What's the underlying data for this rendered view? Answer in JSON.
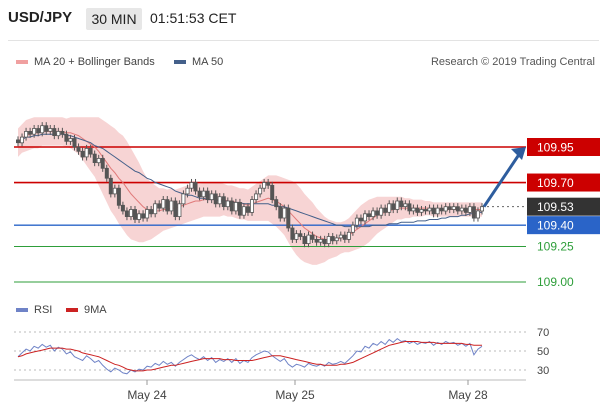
{
  "header": {
    "pair": "USD/JPY",
    "timeframe": "30 MIN",
    "time": "01:51:53 CET"
  },
  "legend": {
    "ma20_bb": "MA 20 + Bollinger Bands",
    "ma50": "MA 50",
    "rsi": "RSI",
    "nine_ma": "9MA"
  },
  "credit": "Research © 2019 Trading Central",
  "colors": {
    "resistance": "#cc0000",
    "support_blue": "#2a64c8",
    "support_green": "#2e9e3a",
    "candle": "#555555",
    "bb_fill": "#f4c6c6",
    "ma20": "#e07a7a",
    "ma50": "#44608a",
    "rsi": "#6f83c7",
    "nine_ma": "#cc2222",
    "arrow": "#2e5d9e",
    "price_tag": "#333333"
  },
  "chart_data": {
    "type": "candlestick",
    "price_ylim": [
      108.95,
      110.15
    ],
    "x_ticks": [
      "May 24",
      "May 25",
      "May 28"
    ],
    "levels": [
      {
        "value": 109.95,
        "label": "109.95",
        "kind": "resistance"
      },
      {
        "value": 109.7,
        "label": "109.70",
        "kind": "resistance"
      },
      {
        "value": 109.53,
        "label": "109.53",
        "kind": "current"
      },
      {
        "value": 109.4,
        "label": "109.40",
        "kind": "support_blue"
      },
      {
        "value": 109.25,
        "label": "109.25",
        "kind": "support_green"
      },
      {
        "value": 109.0,
        "label": "109.00",
        "kind": "support_green"
      }
    ],
    "close": [
      109.98,
      110.02,
      110.06,
      110.04,
      110.08,
      110.05,
      110.1,
      110.06,
      110.08,
      110.03,
      110.06,
      110.04,
      109.99,
      110.01,
      109.95,
      109.92,
      109.88,
      109.94,
      109.9,
      109.84,
      109.87,
      109.8,
      109.73,
      109.62,
      109.66,
      109.54,
      109.5,
      109.46,
      109.51,
      109.44,
      109.48,
      109.45,
      109.51,
      109.48,
      109.55,
      109.52,
      109.58,
      109.5,
      109.57,
      109.46,
      109.55,
      109.62,
      109.66,
      109.7,
      109.64,
      109.6,
      109.64,
      109.58,
      109.62,
      109.55,
      109.6,
      109.53,
      109.57,
      109.5,
      109.56,
      109.47,
      109.53,
      109.49,
      109.58,
      109.62,
      109.66,
      109.7,
      109.68,
      109.58,
      109.53,
      109.45,
      109.52,
      109.38,
      109.3,
      109.34,
      109.32,
      109.27,
      109.33,
      109.3,
      109.28,
      109.3,
      109.27,
      109.32,
      109.29,
      109.31,
      109.33,
      109.3,
      109.35,
      109.4,
      109.45,
      109.43,
      109.48,
      109.46,
      109.5,
      109.47,
      109.52,
      109.49,
      109.55,
      109.51,
      109.57,
      109.53,
      109.55,
      109.5,
      109.52,
      109.49,
      109.51,
      109.5,
      109.52,
      109.48,
      109.52,
      109.5,
      109.53,
      109.51,
      109.53,
      109.5,
      109.52,
      109.49,
      109.53,
      109.45,
      109.5,
      109.53
    ],
    "ma50": [
      109.98,
      110.0,
      110.02,
      110.02,
      110.03,
      110.03,
      110.04,
      110.04,
      110.04,
      110.04,
      110.04,
      110.04,
      110.03,
      110.03,
      110.02,
      110.01,
      110.0,
      109.99,
      109.98,
      109.96,
      109.95,
      109.94,
      109.92,
      109.9,
      109.88,
      109.86,
      109.84,
      109.82,
      109.8,
      109.78,
      109.77,
      109.75,
      109.73,
      109.72,
      109.7,
      109.69,
      109.68,
      109.67,
      109.66,
      109.64,
      109.63,
      109.62,
      109.61,
      109.61,
      109.6,
      109.59,
      109.59,
      109.58,
      109.58,
      109.58,
      109.57,
      109.57,
      109.57,
      109.56,
      109.56,
      109.56,
      109.55,
      109.55,
      109.55,
      109.55,
      109.55,
      109.55,
      109.55,
      109.54,
      109.54,
      109.53,
      109.53,
      109.52,
      109.51,
      109.5,
      109.49,
      109.48,
      109.47,
      109.46,
      109.45,
      109.44,
      109.43,
      109.42,
      109.41,
      109.4,
      109.4,
      109.39,
      109.39,
      109.39,
      109.39,
      109.39,
      109.39,
      109.39,
      109.4,
      109.4,
      109.4,
      109.4,
      109.41,
      109.41,
      109.41,
      109.42,
      109.42,
      109.42,
      109.42,
      109.43,
      109.43,
      109.43,
      109.44,
      109.44,
      109.44,
      109.45,
      109.45,
      109.46,
      109.46,
      109.46,
      109.47,
      109.47,
      109.48,
      109.48,
      109.49,
      109.49
    ],
    "ma20": [
      109.98,
      110.01,
      110.03,
      110.04,
      110.05,
      110.05,
      110.06,
      110.06,
      110.06,
      110.06,
      110.06,
      110.06,
      110.05,
      110.05,
      110.04,
      110.03,
      110.01,
      109.99,
      109.97,
      109.95,
      109.92,
      109.88,
      109.84,
      109.8,
      109.77,
      109.73,
      109.7,
      109.66,
      109.62,
      109.59,
      109.56,
      109.53,
      109.51,
      109.5,
      109.5,
      109.5,
      109.51,
      109.51,
      109.52,
      109.52,
      109.53,
      109.54,
      109.55,
      109.56,
      109.57,
      109.57,
      109.58,
      109.58,
      109.58,
      109.58,
      109.58,
      109.58,
      109.57,
      109.57,
      109.56,
      109.55,
      109.55,
      109.54,
      109.55,
      109.56,
      109.57,
      109.58,
      109.59,
      109.58,
      109.57,
      109.55,
      109.53,
      109.5,
      109.47,
      109.44,
      109.41,
      109.38,
      109.36,
      109.34,
      109.32,
      109.31,
      109.3,
      109.3,
      109.3,
      109.3,
      109.31,
      109.32,
      109.33,
      109.35,
      109.37,
      109.39,
      109.41,
      109.43,
      109.45,
      109.47,
      109.48,
      109.49,
      109.5,
      109.51,
      109.52,
      109.52,
      109.52,
      109.52,
      109.52,
      109.52,
      109.52,
      109.52,
      109.52,
      109.51,
      109.51,
      109.51,
      109.51,
      109.51,
      109.51,
      109.51,
      109.51,
      109.51,
      109.51,
      109.51,
      109.51,
      109.51
    ],
    "bb_width": [
      0.1,
      0.1,
      0.11,
      0.11,
      0.11,
      0.11,
      0.1,
      0.1,
      0.1,
      0.1,
      0.1,
      0.1,
      0.1,
      0.11,
      0.12,
      0.13,
      0.15,
      0.17,
      0.19,
      0.21,
      0.24,
      0.26,
      0.28,
      0.3,
      0.31,
      0.32,
      0.33,
      0.33,
      0.32,
      0.3,
      0.28,
      0.25,
      0.22,
      0.2,
      0.18,
      0.16,
      0.15,
      0.14,
      0.14,
      0.13,
      0.13,
      0.13,
      0.13,
      0.13,
      0.13,
      0.12,
      0.12,
      0.12,
      0.12,
      0.12,
      0.12,
      0.11,
      0.11,
      0.11,
      0.11,
      0.11,
      0.11,
      0.11,
      0.12,
      0.13,
      0.14,
      0.15,
      0.16,
      0.17,
      0.18,
      0.19,
      0.2,
      0.22,
      0.24,
      0.25,
      0.25,
      0.24,
      0.23,
      0.22,
      0.2,
      0.18,
      0.16,
      0.14,
      0.13,
      0.12,
      0.11,
      0.11,
      0.12,
      0.13,
      0.14,
      0.15,
      0.15,
      0.15,
      0.14,
      0.13,
      0.12,
      0.11,
      0.1,
      0.09,
      0.08,
      0.08,
      0.07,
      0.07,
      0.06,
      0.06,
      0.06,
      0.05,
      0.05,
      0.05,
      0.05,
      0.05,
      0.05,
      0.05,
      0.05,
      0.05,
      0.05,
      0.05,
      0.05,
      0.05,
      0.05,
      0.05
    ],
    "rsi_levels": [
      70,
      50,
      30
    ],
    "rsi": [
      44,
      48,
      52,
      50,
      55,
      53,
      57,
      54,
      56,
      50,
      54,
      52,
      47,
      49,
      44,
      42,
      40,
      45,
      42,
      38,
      40,
      35,
      31,
      28,
      32,
      30,
      27,
      26,
      30,
      28,
      31,
      30,
      34,
      33,
      37,
      35,
      39,
      36,
      38,
      34,
      38,
      41,
      44,
      46,
      43,
      41,
      44,
      40,
      43,
      38,
      41,
      39,
      42,
      38,
      42,
      37,
      40,
      38,
      43,
      46,
      48,
      50,
      49,
      45,
      42,
      39,
      42,
      36,
      33,
      36,
      35,
      33,
      37,
      35,
      34,
      36,
      34,
      38,
      36,
      37,
      39,
      37,
      41,
      45,
      50,
      49,
      55,
      53,
      58,
      56,
      60,
      57,
      62,
      59,
      63,
      60,
      61,
      58,
      60,
      57,
      59,
      58,
      60,
      56,
      59,
      57,
      60,
      58,
      59,
      56,
      58,
      55,
      58,
      46,
      52,
      55
    ],
    "nine_ma": [
      44,
      45,
      47,
      48,
      49,
      50,
      51,
      52,
      53,
      53,
      53,
      53,
      52,
      52,
      51,
      50,
      48,
      47,
      46,
      45,
      44,
      42,
      40,
      38,
      36,
      35,
      33,
      31,
      30,
      29,
      29,
      29,
      30,
      30,
      31,
      32,
      33,
      34,
      35,
      35,
      36,
      37,
      38,
      39,
      40,
      41,
      42,
      42,
      42,
      42,
      42,
      41,
      41,
      41,
      40,
      40,
      40,
      40,
      40,
      41,
      42,
      43,
      44,
      45,
      45,
      45,
      44,
      43,
      42,
      41,
      40,
      39,
      38,
      37,
      36,
      36,
      35,
      35,
      35,
      35,
      36,
      36,
      37,
      38,
      40,
      42,
      44,
      46,
      48,
      50,
      52,
      54,
      56,
      57,
      58,
      59,
      60,
      60,
      60,
      60,
      59,
      59,
      59,
      59,
      58,
      58,
      58,
      58,
      58,
      58,
      58,
      57,
      57,
      56,
      56,
      56
    ]
  }
}
